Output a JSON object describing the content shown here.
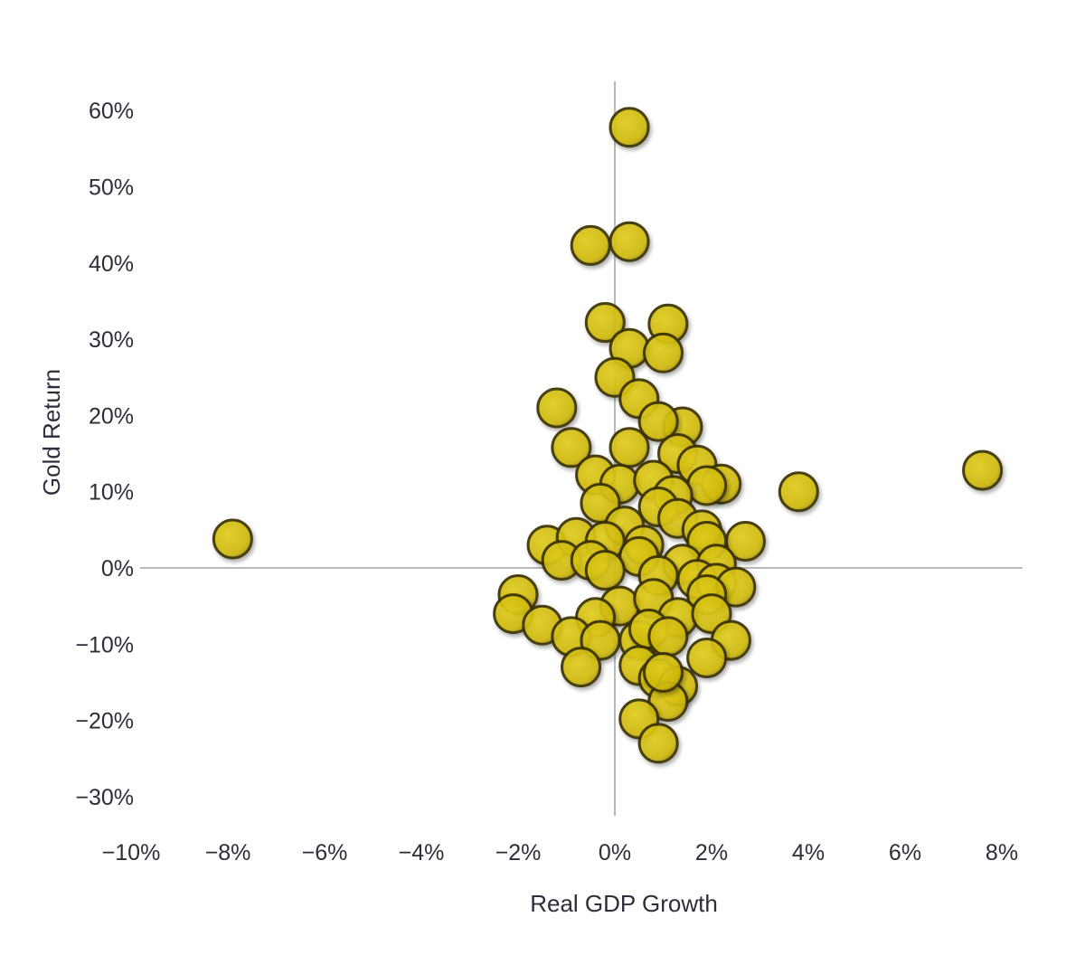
{
  "chart_data": {
    "type": "scatter",
    "title": "",
    "xlabel": "Real GDP Growth",
    "ylabel": "Gold Return",
    "xlim": [
      -10,
      8.5
    ],
    "ylim": [
      -32,
      64
    ],
    "x_ticks": [
      {
        "value": -10,
        "label": "−10%"
      },
      {
        "value": -8,
        "label": "−8%"
      },
      {
        "value": -6,
        "label": "−6%"
      },
      {
        "value": -4,
        "label": "−4%"
      },
      {
        "value": -2,
        "label": "−2%"
      },
      {
        "value": 0,
        "label": "0%"
      },
      {
        "value": 2,
        "label": "2%"
      },
      {
        "value": 4,
        "label": "4%"
      },
      {
        "value": 6,
        "label": "6%"
      },
      {
        "value": 8,
        "label": "8%"
      }
    ],
    "y_ticks": [
      {
        "value": 60,
        "label": "60%"
      },
      {
        "value": 50,
        "label": "50%"
      },
      {
        "value": 40,
        "label": "40%"
      },
      {
        "value": 30,
        "label": "30%"
      },
      {
        "value": 20,
        "label": "20%"
      },
      {
        "value": 10,
        "label": "10%"
      },
      {
        "value": 0,
        "label": "0%"
      },
      {
        "value": -10,
        "label": "−10%"
      },
      {
        "value": -20,
        "label": "−20%"
      },
      {
        "value": -30,
        "label": "−30%"
      }
    ],
    "grid": false,
    "legend": "none",
    "colors": {
      "fill": "#cdb80c",
      "fill_faded": "#c9bd45",
      "edge": "#3b3300",
      "axis": "#b9b9b9"
    },
    "series": [
      {
        "points": [
          {
            "x": 7.6,
            "y": 12.8
          },
          {
            "x": -7.9,
            "y": 3.8
          },
          {
            "x": 3.8,
            "y": 10.0
          },
          {
            "x": 0.3,
            "y": 57.8
          },
          {
            "x": -0.5,
            "y": 42.3
          },
          {
            "x": 0.3,
            "y": 42.8
          },
          {
            "x": -0.2,
            "y": 32.2
          },
          {
            "x": 1.1,
            "y": 32.0
          },
          {
            "x": 0.3,
            "y": 28.8
          },
          {
            "x": 1.0,
            "y": 28.2
          },
          {
            "x": 0.0,
            "y": 25.0
          },
          {
            "x": 0.5,
            "y": 22.2
          },
          {
            "x": -1.2,
            "y": 21.0
          },
          {
            "x": 1.4,
            "y": 18.5
          },
          {
            "x": 0.9,
            "y": 19.2
          },
          {
            "x": -0.9,
            "y": 15.8
          },
          {
            "x": 0.3,
            "y": 15.8
          },
          {
            "x": 1.3,
            "y": 15.0
          },
          {
            "x": 1.7,
            "y": 13.5
          },
          {
            "x": -0.4,
            "y": 12.2
          },
          {
            "x": 0.1,
            "y": 11.0
          },
          {
            "x": 0.8,
            "y": 11.5
          },
          {
            "x": 2.2,
            "y": 11.0
          },
          {
            "x": 1.9,
            "y": 10.8
          },
          {
            "x": -0.3,
            "y": 8.5
          },
          {
            "x": 1.2,
            "y": 9.5
          },
          {
            "x": 0.9,
            "y": 8.0
          },
          {
            "x": 0.2,
            "y": 5.5
          },
          {
            "x": 1.3,
            "y": 6.5
          },
          {
            "x": 1.8,
            "y": 5.0
          },
          {
            "x": 2.7,
            "y": 3.5
          },
          {
            "x": -1.4,
            "y": 3.0
          },
          {
            "x": -0.8,
            "y": 4.0
          },
          {
            "x": -0.2,
            "y": 3.5
          },
          {
            "x": 0.6,
            "y": 3.0
          },
          {
            "x": 1.9,
            "y": 3.5
          },
          {
            "x": -1.1,
            "y": 1.0
          },
          {
            "x": -0.5,
            "y": 1.0
          },
          {
            "x": 0.5,
            "y": 1.5
          },
          {
            "x": 1.4,
            "y": 0.5
          },
          {
            "x": 2.1,
            "y": 0.5
          },
          {
            "x": -0.2,
            "y": -0.3
          },
          {
            "x": 0.9,
            "y": -1.0
          },
          {
            "x": 1.7,
            "y": -1.5
          },
          {
            "x": 2.1,
            "y": -2.0
          },
          {
            "x": 2.5,
            "y": -2.5
          },
          {
            "x": -2.0,
            "y": -3.5
          },
          {
            "x": -2.1,
            "y": -6.0
          },
          {
            "x": 0.1,
            "y": -5.0
          },
          {
            "x": 0.8,
            "y": -4.0
          },
          {
            "x": 1.9,
            "y": -3.5
          },
          {
            "x": -1.5,
            "y": -7.5
          },
          {
            "x": -0.4,
            "y": -6.5
          },
          {
            "x": 1.3,
            "y": -6.5
          },
          {
            "x": 2.0,
            "y": -6.0
          },
          {
            "x": -0.9,
            "y": -9.0
          },
          {
            "x": -0.3,
            "y": -9.5
          },
          {
            "x": 0.5,
            "y": -9.5
          },
          {
            "x": 0.7,
            "y": -8.0
          },
          {
            "x": 1.1,
            "y": -9.0
          },
          {
            "x": 2.4,
            "y": -9.5
          },
          {
            "x": 1.9,
            "y": -11.8
          },
          {
            "x": -0.7,
            "y": -13.0
          },
          {
            "x": 0.5,
            "y": -12.8
          },
          {
            "x": 0.9,
            "y": -14.5
          },
          {
            "x": 1.3,
            "y": -15.5
          },
          {
            "x": 1.1,
            "y": -17.5
          },
          {
            "x": 1.0,
            "y": -13.7
          },
          {
            "x": 0.5,
            "y": -19.8
          },
          {
            "x": 0.9,
            "y": -23.0
          }
        ]
      }
    ]
  }
}
